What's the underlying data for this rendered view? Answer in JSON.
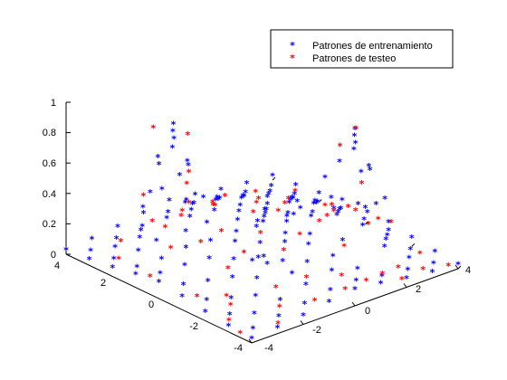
{
  "chart_data": {
    "type": "scatter",
    "title": "",
    "xlabel": "",
    "ylabel": "",
    "zlabel": "",
    "projection": "3d",
    "xlim": [
      -4,
      4
    ],
    "ylim": [
      -4,
      4
    ],
    "zlim": [
      0,
      1
    ],
    "x_ticks": [
      "-4",
      "-2",
      "0",
      "2",
      "4"
    ],
    "y_ticks": [
      "-4",
      "-2",
      "0",
      "2",
      "4"
    ],
    "z_ticks": [
      "0",
      "0.2",
      "0.4",
      "0.6",
      "0.8",
      "1"
    ],
    "grid": false,
    "legend_position": "top-right",
    "marker": "*",
    "series": [
      {
        "name": "Patrones de entrenamiento",
        "color": "#0000ff",
        "points": [
          [
            -2.2,
            1.4,
            0.88
          ],
          [
            -2.0,
            1.6,
            0.9
          ],
          [
            -2.4,
            1.2,
            0.8
          ],
          [
            -1.8,
            1.8,
            0.78
          ],
          [
            -2.6,
            1.6,
            0.72
          ],
          [
            -2.0,
            1.0,
            0.7
          ],
          [
            -2.2,
            2.0,
            0.62
          ],
          [
            -1.6,
            1.4,
            0.62
          ],
          [
            -2.8,
            1.2,
            0.55
          ],
          [
            -1.4,
            2.0,
            0.5
          ],
          [
            -2.4,
            0.6,
            0.5
          ],
          [
            -3.0,
            1.8,
            0.4
          ],
          [
            -1.2,
            1.2,
            0.4
          ],
          [
            -2.0,
            2.6,
            0.38
          ],
          [
            -2.6,
            0.4,
            0.32
          ],
          [
            -1.0,
            2.2,
            0.28
          ],
          [
            -3.2,
            1.0,
            0.25
          ],
          [
            -1.6,
            0.6,
            0.3
          ],
          [
            1.6,
            -2.2,
            0.88
          ],
          [
            1.8,
            -2.0,
            0.9
          ],
          [
            1.4,
            -2.4,
            0.82
          ],
          [
            2.0,
            -1.8,
            0.78
          ],
          [
            1.2,
            -2.0,
            0.72
          ],
          [
            1.8,
            -2.6,
            0.7
          ],
          [
            2.2,
            -2.2,
            0.62
          ],
          [
            1.0,
            -1.6,
            0.6
          ],
          [
            2.4,
            -1.6,
            0.55
          ],
          [
            1.2,
            -2.8,
            0.5
          ],
          [
            0.8,
            -2.2,
            0.45
          ],
          [
            2.6,
            -2.4,
            0.42
          ],
          [
            1.6,
            -1.2,
            0.4
          ],
          [
            2.8,
            -1.8,
            0.33
          ],
          [
            0.6,
            -2.8,
            0.3
          ],
          [
            2.2,
            -3.0,
            0.28
          ],
          [
            1.0,
            -1.0,
            0.3
          ],
          [
            3.0,
            -1.2,
            0.22
          ],
          [
            -2.0,
            -1.8,
            0.25
          ],
          [
            -1.6,
            -2.0,
            0.22
          ],
          [
            -1.2,
            -1.4,
            0.2
          ],
          [
            -0.8,
            -0.8,
            0.22
          ],
          [
            -0.4,
            -0.2,
            0.26
          ],
          [
            0.0,
            0.2,
            0.24
          ],
          [
            0.4,
            0.4,
            0.2
          ],
          [
            0.8,
            0.8,
            0.18
          ],
          [
            1.2,
            1.2,
            0.15
          ],
          [
            1.6,
            1.6,
            0.12
          ],
          [
            2.0,
            2.0,
            0.1
          ],
          [
            -1.0,
            -2.4,
            0.15
          ],
          [
            -0.2,
            -1.2,
            0.22
          ],
          [
            0.6,
            -0.4,
            0.28
          ],
          [
            1.4,
            0.2,
            0.2
          ],
          [
            2.2,
            0.8,
            0.15
          ],
          [
            2.8,
            1.6,
            0.1
          ],
          [
            -4.0,
            -4.0,
            0.02
          ],
          [
            -3.0,
            -4.0,
            0.03
          ],
          [
            -2.0,
            -4.0,
            0.05
          ],
          [
            -1.0,
            -4.0,
            0.08
          ],
          [
            0.0,
            -4.0,
            0.1
          ],
          [
            1.0,
            -4.0,
            0.08
          ],
          [
            2.0,
            -4.0,
            0.05
          ],
          [
            3.0,
            -4.0,
            0.03
          ],
          [
            4.0,
            -4.0,
            0.02
          ],
          [
            -4.0,
            -3.0,
            0.03
          ],
          [
            -3.0,
            -3.0,
            0.05
          ],
          [
            -2.0,
            -3.0,
            0.08
          ],
          [
            -1.0,
            -3.0,
            0.12
          ],
          [
            0.0,
            -3.0,
            0.15
          ],
          [
            1.0,
            -3.0,
            0.1
          ],
          [
            3.0,
            -3.0,
            0.05
          ],
          [
            4.0,
            -3.0,
            0.03
          ],
          [
            -4.0,
            -2.0,
            0.05
          ],
          [
            -3.0,
            -2.0,
            0.08
          ],
          [
            -2.0,
            -2.0,
            0.15
          ],
          [
            -1.0,
            -2.0,
            0.2
          ],
          [
            0.0,
            -2.0,
            0.25
          ],
          [
            3.0,
            -2.0,
            0.1
          ],
          [
            4.0,
            -2.0,
            0.05
          ],
          [
            -4.0,
            -1.0,
            0.08
          ],
          [
            -3.0,
            -1.0,
            0.12
          ],
          [
            -2.0,
            -1.0,
            0.2
          ],
          [
            0.0,
            -1.0,
            0.25
          ],
          [
            2.0,
            -1.0,
            0.25
          ],
          [
            3.0,
            -1.0,
            0.12
          ],
          [
            4.0,
            -1.0,
            0.08
          ],
          [
            -4.0,
            0.0,
            0.1
          ],
          [
            -3.0,
            0.0,
            0.15
          ],
          [
            -2.0,
            0.0,
            0.25
          ],
          [
            -1.0,
            0.0,
            0.25
          ],
          [
            1.0,
            0.0,
            0.25
          ],
          [
            2.0,
            0.0,
            0.25
          ],
          [
            3.0,
            0.0,
            0.15
          ],
          [
            4.0,
            0.0,
            0.1
          ],
          [
            -4.0,
            1.0,
            0.08
          ],
          [
            -3.0,
            1.0,
            0.12
          ],
          [
            0.0,
            1.0,
            0.25
          ],
          [
            1.0,
            1.0,
            0.2
          ],
          [
            2.0,
            1.0,
            0.2
          ],
          [
            3.0,
            1.0,
            0.12
          ],
          [
            4.0,
            1.0,
            0.08
          ],
          [
            -4.0,
            2.0,
            0.05
          ],
          [
            -3.0,
            2.0,
            0.1
          ],
          [
            -1.0,
            2.0,
            0.2
          ],
          [
            0.0,
            2.0,
            0.25
          ],
          [
            1.0,
            2.0,
            0.2
          ],
          [
            2.0,
            2.0,
            0.15
          ],
          [
            3.0,
            2.0,
            0.08
          ],
          [
            4.0,
            2.0,
            0.05
          ],
          [
            -4.0,
            3.0,
            0.03
          ],
          [
            -3.0,
            3.0,
            0.05
          ],
          [
            -2.0,
            3.0,
            0.1
          ],
          [
            -1.0,
            3.0,
            0.12
          ],
          [
            0.0,
            3.0,
            0.15
          ],
          [
            1.0,
            3.0,
            0.12
          ],
          [
            2.0,
            3.0,
            0.08
          ],
          [
            3.0,
            3.0,
            0.05
          ],
          [
            4.0,
            3.0,
            0.03
          ],
          [
            -4.0,
            4.0,
            0.02
          ],
          [
            -3.0,
            4.0,
            0.03
          ],
          [
            -2.0,
            4.0,
            0.05
          ],
          [
            -1.0,
            4.0,
            0.08
          ],
          [
            0.0,
            4.0,
            0.1
          ],
          [
            1.0,
            4.0,
            0.08
          ],
          [
            2.0,
            4.0,
            0.05
          ],
          [
            3.0,
            4.0,
            0.03
          ],
          [
            4.0,
            4.0,
            0.02
          ],
          [
            -3.5,
            -3.5,
            0.02
          ],
          [
            -2.5,
            -3.5,
            0.04
          ],
          [
            -1.5,
            -3.5,
            0.06
          ],
          [
            -0.5,
            -3.5,
            0.09
          ],
          [
            0.5,
            -3.5,
            0.09
          ],
          [
            1.5,
            -3.5,
            0.06
          ],
          [
            2.5,
            -3.5,
            0.04
          ],
          [
            3.5,
            -3.5,
            0.02
          ],
          [
            -3.5,
            -2.5,
            0.04
          ],
          [
            -2.5,
            -2.5,
            0.1
          ],
          [
            -0.5,
            -2.5,
            0.2
          ],
          [
            0.5,
            -2.5,
            0.18
          ],
          [
            2.5,
            -2.5,
            0.12
          ],
          [
            3.5,
            -2.5,
            0.04
          ],
          [
            -3.5,
            -1.5,
            0.06
          ],
          [
            -2.5,
            -1.5,
            0.15
          ],
          [
            -1.5,
            -1.5,
            0.22
          ],
          [
            0.5,
            -1.5,
            0.25
          ],
          [
            3.5,
            -1.5,
            0.06
          ],
          [
            -3.5,
            -0.5,
            0.09
          ],
          [
            -2.5,
            -0.5,
            0.2
          ],
          [
            -1.5,
            -0.5,
            0.25
          ],
          [
            0.5,
            -0.5,
            0.26
          ],
          [
            1.5,
            -0.5,
            0.26
          ],
          [
            2.5,
            -0.5,
            0.2
          ],
          [
            3.5,
            -0.5,
            0.09
          ],
          [
            -3.5,
            0.5,
            0.09
          ],
          [
            -2.5,
            0.5,
            0.2
          ],
          [
            -0.5,
            0.5,
            0.26
          ],
          [
            1.5,
            0.5,
            0.25
          ],
          [
            2.5,
            0.5,
            0.2
          ],
          [
            3.5,
            0.5,
            0.09
          ],
          [
            -3.5,
            1.5,
            0.06
          ],
          [
            -0.5,
            1.5,
            0.25
          ],
          [
            0.5,
            1.5,
            0.22
          ],
          [
            2.5,
            1.5,
            0.15
          ],
          [
            3.5,
            1.5,
            0.06
          ],
          [
            -3.5,
            2.5,
            0.04
          ],
          [
            -2.5,
            2.5,
            0.12
          ],
          [
            -0.5,
            2.5,
            0.18
          ],
          [
            0.5,
            2.5,
            0.2
          ],
          [
            1.5,
            2.5,
            0.15
          ],
          [
            2.5,
            2.5,
            0.1
          ],
          [
            3.5,
            2.5,
            0.04
          ],
          [
            -3.5,
            3.5,
            0.02
          ],
          [
            -2.5,
            3.5,
            0.04
          ],
          [
            -1.5,
            3.5,
            0.06
          ],
          [
            -0.5,
            3.5,
            0.09
          ],
          [
            0.5,
            3.5,
            0.09
          ],
          [
            1.5,
            3.5,
            0.06
          ],
          [
            2.5,
            3.5,
            0.04
          ],
          [
            3.5,
            3.5,
            0.02
          ]
        ]
      },
      {
        "name": "Patrones de testeo",
        "color": "#ff0000",
        "points": [
          [
            -2.6,
            1.8,
            0.9
          ],
          [
            -1.8,
            1.2,
            0.85
          ],
          [
            -2.2,
            0.8,
            0.58
          ],
          [
            -1.4,
            1.6,
            0.55
          ],
          [
            -2.8,
            2.0,
            0.45
          ],
          [
            -1.0,
            1.0,
            0.35
          ],
          [
            -3.0,
            0.6,
            0.22
          ],
          [
            2.2,
            -1.6,
            0.85
          ],
          [
            1.4,
            -1.8,
            0.8
          ],
          [
            1.0,
            -2.6,
            0.48
          ],
          [
            2.6,
            -1.4,
            0.45
          ],
          [
            1.8,
            -3.0,
            0.38
          ],
          [
            0.6,
            -1.8,
            0.35
          ],
          [
            3.2,
            -2.0,
            0.2
          ],
          [
            -4.0,
            -3.5,
            0.02
          ],
          [
            -3.8,
            -2.8,
            0.04
          ],
          [
            -3.2,
            -2.2,
            0.06
          ],
          [
            -2.8,
            -3.8,
            0.03
          ],
          [
            -2.2,
            -3.2,
            0.06
          ],
          [
            -1.8,
            -2.6,
            0.12
          ],
          [
            -1.2,
            -3.6,
            0.07
          ],
          [
            -0.8,
            -2.8,
            0.14
          ],
          [
            -0.2,
            -3.8,
            0.1
          ],
          [
            0.2,
            -3.2,
            0.12
          ],
          [
            0.8,
            -3.6,
            0.08
          ],
          [
            1.2,
            -2.2,
            0.18
          ],
          [
            1.6,
            -3.4,
            0.06
          ],
          [
            2.0,
            -3.8,
            0.03
          ],
          [
            2.4,
            -3.2,
            0.04
          ],
          [
            3.0,
            -3.6,
            0.02
          ],
          [
            3.6,
            -2.8,
            0.03
          ],
          [
            3.8,
            -3.8,
            0.01
          ],
          [
            -3.6,
            -1.2,
            0.07
          ],
          [
            -3.0,
            -1.8,
            0.08
          ],
          [
            -2.4,
            -1.2,
            0.18
          ],
          [
            -1.6,
            -1.0,
            0.22
          ],
          [
            -0.6,
            -1.6,
            0.22
          ],
          [
            0.2,
            -1.4,
            0.26
          ],
          [
            1.8,
            -0.8,
            0.24
          ],
          [
            2.6,
            -0.2,
            0.18
          ],
          [
            3.4,
            -0.8,
            0.09
          ],
          [
            3.8,
            0.2,
            0.08
          ],
          [
            -3.8,
            0.6,
            0.08
          ],
          [
            -2.2,
            0.2,
            0.24
          ],
          [
            -1.4,
            0.2,
            0.26
          ],
          [
            -0.6,
            -0.6,
            0.26
          ],
          [
            0.2,
            0.6,
            0.26
          ],
          [
            0.8,
            0.2,
            0.26
          ],
          [
            1.6,
            0.8,
            0.22
          ],
          [
            2.8,
            0.4,
            0.16
          ],
          [
            3.6,
            1.0,
            0.07
          ],
          [
            -3.4,
            2.4,
            0.04
          ],
          [
            -1.6,
            2.4,
            0.14
          ],
          [
            -0.8,
            2.6,
            0.15
          ],
          [
            -0.2,
            1.8,
            0.24
          ],
          [
            0.6,
            2.8,
            0.14
          ],
          [
            1.4,
            1.8,
            0.16
          ],
          [
            2.2,
            2.6,
            0.08
          ],
          [
            3.0,
            2.2,
            0.06
          ],
          [
            3.8,
            2.8,
            0.02
          ],
          [
            -2.6,
            3.2,
            0.05
          ],
          [
            -1.2,
            3.4,
            0.08
          ],
          [
            0.4,
            3.6,
            0.09
          ],
          [
            1.8,
            3.6,
            0.05
          ],
          [
            2.8,
            3.4,
            0.03
          ],
          [
            -0.4,
            3.0,
            0.13
          ]
        ]
      }
    ]
  }
}
